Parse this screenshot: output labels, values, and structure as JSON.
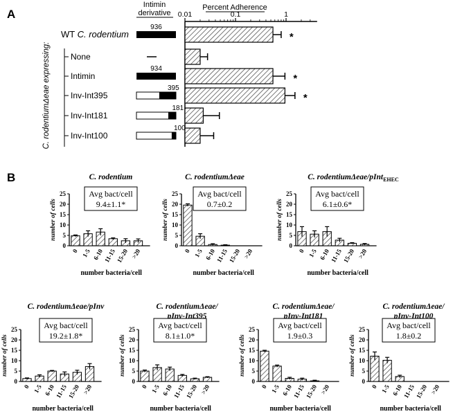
{
  "panel_a": {
    "letter": "A",
    "header_derivative": "Intimin derivative",
    "header_adherence": "Percent Adherence",
    "side_label": "C. rodentiumΔeae expressing:",
    "wt_label_prefix": "WT ",
    "wt_label_species": "C. rodentium"
  },
  "panel_b": {
    "letter": "B",
    "y_label": "number of cells",
    "x_label": "number bacteria/cell",
    "box_title": "Avg bact/cell"
  },
  "chart_data": [
    {
      "id": "A",
      "type": "bar",
      "orientation": "horizontal",
      "x_scale": "log",
      "xlabel": "Percent Adherence",
      "xlim": [
        0.01,
        3
      ],
      "x_ticks": [
        "0.01",
        "0.1",
        "1"
      ],
      "categories": [
        "WT C. rodentium",
        "None",
        "Intimin",
        "Inv-Int395",
        "Inv-Int181",
        "Inv-Int100"
      ],
      "derivative_lengths": [
        "936",
        "",
        "934",
        "395",
        "181",
        "100"
      ],
      "values": [
        0.55,
        0.02,
        0.55,
        0.95,
        0.023,
        0.02
      ],
      "errors": [
        0.25,
        0.008,
        0.4,
        0.55,
        0.025,
        0.017
      ],
      "significance": [
        "*",
        "",
        "*",
        "*",
        "",
        ""
      ]
    },
    {
      "type": "bar",
      "title_lines": [
        "C. rodentium"
      ],
      "categories": [
        "0",
        "1-5",
        "6-10",
        "11-15",
        "15-20",
        ">20"
      ],
      "values": [
        4.8,
        5.8,
        6.6,
        3.4,
        2.4,
        2.4
      ],
      "errors": [
        0.4,
        1.4,
        1.6,
        0.4,
        1.0,
        0.9
      ],
      "ylim": [
        0,
        25
      ],
      "y_ticks": [
        "0",
        "5",
        "10",
        "15",
        "20",
        "25"
      ],
      "avg": "9.4±1.1*"
    },
    {
      "type": "bar",
      "title_lines": [
        "C. rodentiumΔeae"
      ],
      "categories": [
        "0",
        "1-5",
        "6-10",
        "11-15",
        "15-20",
        ">20"
      ],
      "values": [
        19.6,
        4.6,
        0.6,
        0.3,
        0,
        0
      ],
      "errors": [
        0.6,
        1.2,
        0.4,
        0.2,
        0,
        0
      ],
      "ylim": [
        0,
        25
      ],
      "y_ticks": [
        "0",
        "5",
        "10",
        "15",
        "20",
        "25"
      ],
      "avg": "0.7±0.2"
    },
    {
      "type": "bar",
      "title_lines": [
        "C. rodentiumΔeae/pInt"
      ],
      "title_subscript": "EHEC",
      "categories": [
        "0",
        "1-5",
        "6-10",
        "11-15",
        "15-20",
        ">20"
      ],
      "values": [
        6.8,
        5.6,
        6.8,
        2.7,
        1.2,
        0.7
      ],
      "errors": [
        2.4,
        1.6,
        2.4,
        0.9,
        0.3,
        0.4
      ],
      "ylim": [
        0,
        25
      ],
      "y_ticks": [
        "0",
        "5",
        "10",
        "15",
        "20",
        "25"
      ],
      "avg": "6.1±0.6*"
    },
    {
      "type": "bar",
      "title_lines": [
        "C. rodentiumΔeae/pInv"
      ],
      "categories": [
        "0",
        "1-5",
        "6-10",
        "11-15",
        "15-20",
        ">20"
      ],
      "values": [
        1.4,
        2.6,
        5.0,
        3.6,
        4.4,
        7.2
      ],
      "errors": [
        0.3,
        0.6,
        0.3,
        1.0,
        1.0,
        1.4
      ],
      "ylim": [
        0,
        25
      ],
      "y_ticks": [
        "0",
        "5",
        "10",
        "15",
        "20",
        "25"
      ],
      "avg": "19.2±1.8*"
    },
    {
      "type": "bar",
      "title_lines": [
        "C. rodentiumΔeae/",
        "pInv-Int395"
      ],
      "categories": [
        "0",
        "1-5",
        "6-10",
        "11-15",
        "15-20",
        ">20"
      ],
      "values": [
        5.0,
        6.7,
        6.0,
        2.9,
        1.3,
        2.0
      ],
      "errors": [
        0.5,
        1.3,
        0.9,
        0.5,
        0.3,
        0.3
      ],
      "ylim": [
        0,
        25
      ],
      "y_ticks": [
        "0",
        "5",
        "10",
        "15",
        "20",
        "25"
      ],
      "avg": "8.1±1.0*"
    },
    {
      "type": "bar",
      "title_lines": [
        "C. rodentiumΔeae/",
        "pInv-Int181"
      ],
      "categories": [
        "0",
        "1-5",
        "6-10",
        "11-15",
        "15-20",
        ">20"
      ],
      "values": [
        14.6,
        7.4,
        1.5,
        1.1,
        0.3,
        0
      ],
      "errors": [
        0.4,
        0.5,
        0.5,
        0.5,
        0.3,
        0
      ],
      "ylim": [
        0,
        25
      ],
      "y_ticks": [
        "0",
        "5",
        "10",
        "15",
        "20",
        "25"
      ],
      "avg": "1.9±0.3"
    },
    {
      "type": "bar",
      "title_lines": [
        "C. rodentiumΔeae/",
        "pInv-Int100"
      ],
      "categories": [
        "0",
        "1-5",
        "6-10",
        "11-15",
        "15-20",
        ">20"
      ],
      "values": [
        12.2,
        10.2,
        2.4,
        0,
        0,
        0
      ],
      "errors": [
        2.0,
        1.4,
        0.6,
        0,
        0,
        0
      ],
      "ylim": [
        0,
        25
      ],
      "y_ticks": [
        "0",
        "5",
        "10",
        "15",
        "20",
        "25"
      ],
      "avg": "1.8±0.2"
    }
  ]
}
